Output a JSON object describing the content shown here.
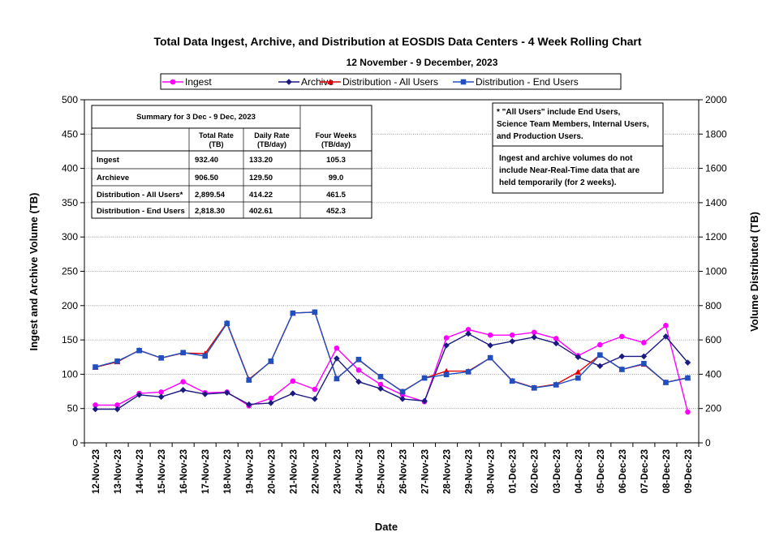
{
  "colors": {
    "ingest": "#ff00ff",
    "archive": "#1a1a80",
    "dist_all": "#e00000",
    "dist_end": "#2050c0",
    "grid": "#888888"
  },
  "chart_data": {
    "type": "line",
    "title": "Total Data Ingest, Archive, and  Distribution at EOSDIS Data Centers - 4 Week Rolling Chart",
    "subtitle": "12  November   - 9  December,  2023",
    "xlabel": "Date",
    "ylabel": "Ingest and Archive Volume (TB)",
    "y2label": "Volume Distributed (TB)",
    "ylim": [
      0,
      500
    ],
    "y2lim": [
      0,
      2000
    ],
    "yticks": [
      "0",
      "50",
      "100",
      "150",
      "200",
      "250",
      "300",
      "350",
      "400",
      "450",
      "500"
    ],
    "y2ticks": [
      "0",
      "200",
      "400",
      "600",
      "800",
      "1000",
      "1200",
      "1400",
      "1600",
      "1800",
      "2000"
    ],
    "grid": "horizontal dotted",
    "legend_position": "top-center",
    "categories": [
      "12-Nov-23",
      "13-Nov-23",
      "14-Nov-23",
      "15-Nov-23",
      "16-Nov-23",
      "17-Nov-23",
      "18-Nov-23",
      "19-Nov-23",
      "20-Nov-23",
      "21-Nov-23",
      "22-Nov-23",
      "23-Nov-23",
      "24-Nov-23",
      "25-Nov-23",
      "26-Nov-23",
      "27-Nov-23",
      "28-Nov-23",
      "29-Nov-23",
      "30-Nov-23",
      "01-Dec-23",
      "02-Dec-23",
      "03-Dec-23",
      "04-Dec-23",
      "05-Dec-23",
      "06-Dec-23",
      "07-Dec-23",
      "08-Dec-23",
      "09-Dec-23"
    ],
    "series": [
      {
        "name": "Ingest",
        "axis": "left",
        "marker": "circle",
        "color_key": "ingest",
        "values": [
          55,
          55,
          72,
          74,
          89,
          73,
          74,
          54,
          65,
          90,
          78,
          138,
          106,
          85,
          70,
          60,
          153,
          165,
          157,
          157,
          161,
          152,
          127,
          143,
          155,
          146,
          171,
          45
        ]
      },
      {
        "name": "Archive",
        "axis": "left",
        "marker": "diamond",
        "color_key": "archive",
        "values": [
          49,
          49,
          70,
          67,
          77,
          71,
          73,
          56,
          58,
          72,
          64,
          123,
          89,
          79,
          64,
          61,
          142,
          159,
          142,
          148,
          154,
          145,
          125,
          112,
          126,
          126,
          155,
          117
        ]
      },
      {
        "name": "Distribution - All Users",
        "axis": "right",
        "marker": "triangle",
        "color_key": "dist_all",
        "values": [
          440,
          472,
          540,
          494,
          524,
          520,
          700,
          370,
          474,
          756,
          762,
          375,
          484,
          385,
          300,
          378,
          418,
          418,
          496,
          362,
          322,
          342,
          412,
          512,
          428,
          458,
          352,
          380
        ]
      },
      {
        "name": "Distribution - End Users",
        "axis": "right",
        "marker": "square",
        "color_key": "dist_end",
        "values": [
          442,
          476,
          538,
          495,
          526,
          506,
          696,
          366,
          476,
          756,
          762,
          374,
          486,
          386,
          298,
          378,
          398,
          414,
          496,
          360,
          320,
          338,
          378,
          512,
          428,
          462,
          352,
          378
        ]
      }
    ]
  },
  "summary_table": {
    "title": "Summary  for  3  Dec   -  9  Dec,  2023",
    "col_headers": [
      [
        "Total Rate",
        "(TB)"
      ],
      [
        "Daily Rate",
        "(TB/day)"
      ],
      [
        "Four Weeks",
        "(TB/day)"
      ]
    ],
    "rows": [
      {
        "label": "Ingest",
        "values": [
          "932.40",
          "133.20",
          "105.3"
        ]
      },
      {
        "label": "Archieve",
        "values": [
          "906.50",
          "129.50",
          "99.0"
        ]
      },
      {
        "label": "Distribution - All Users*",
        "values": [
          "2,899.54",
          "414.22",
          "461.5"
        ]
      },
      {
        "label": "Distribution - End Users",
        "values": [
          "2,818.30",
          "402.61",
          "452.3"
        ]
      }
    ]
  },
  "notes": {
    "note1": [
      " * \"All Users\" include End Users,",
      "Science Team Members,  Internal Users,",
      "and Production Users."
    ],
    "note2": [
      "Ingest and archive volumes do not",
      "include Near-Real-Time data that are",
      "held temporarily (for 2 weeks)."
    ]
  }
}
